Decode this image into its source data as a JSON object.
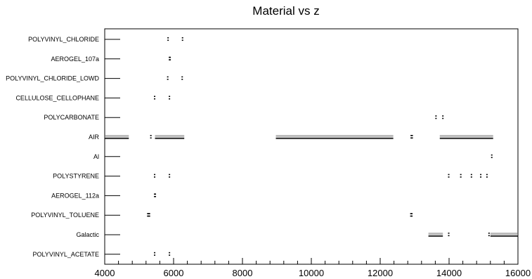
{
  "chart_data": {
    "type": "scatter",
    "title": "Material vs z",
    "xlabel": "",
    "ylabel": "",
    "xlim": [
      4000,
      16000
    ],
    "x_ticks": [
      "4000",
      "6000",
      "8000",
      "10000",
      "12000",
      "14000",
      "16000"
    ],
    "categories": [
      "POLYVINYL_CHLORIDE",
      "AEROGEL_107a",
      "POLYVINYL_CHLORIDE_LOWD",
      "CELLULOSE_CELLOPHANE",
      "POLYCARBONATE",
      "AIR",
      "Al",
      "POLYSTYRENE",
      "AEROGEL_112a",
      "POLYVINYL_TOLUENE",
      "Galactic",
      "POLYVINYL_ACETATE"
    ],
    "grid": false,
    "legend": "none",
    "color": "#000000",
    "points": [
      {
        "category": "POLYVINYL_CHLORIDE",
        "x": [
          5840,
          6260
        ]
      },
      {
        "category": "AEROGEL_107a",
        "x": [
          5880,
          5900
        ]
      },
      {
        "category": "POLYVINYL_CHLORIDE_LOWD",
        "x": [
          5830,
          6250
        ]
      },
      {
        "category": "CELLULOSE_CELLOPHANE",
        "x": [
          5450,
          5880
        ]
      },
      {
        "category": "POLYCARBONATE",
        "x": [
          13620,
          13820
        ]
      },
      {
        "category": "AIR",
        "x": [
          5340,
          12900,
          12930
        ]
      },
      {
        "category": "Al",
        "x": [
          15240
        ]
      },
      {
        "category": "POLYSTYRENE",
        "x": [
          5450,
          5880,
          13990,
          14340,
          14650,
          14920,
          15100
        ]
      },
      {
        "category": "AEROGEL_112a",
        "x": [
          5450,
          5470
        ]
      },
      {
        "category": "POLYVINYL_TOLUENE",
        "x": [
          5250,
          5280,
          5300,
          12890,
          12920
        ]
      },
      {
        "category": "Galactic",
        "x": [
          13990,
          15160
        ]
      },
      {
        "category": "POLYVINYL_ACETATE",
        "x": [
          5450,
          5880
        ]
      }
    ],
    "segments": [
      {
        "category": "AIR",
        "x": [
          4000,
          4700
        ]
      },
      {
        "category": "AIR",
        "x": [
          5460,
          6310
        ]
      },
      {
        "category": "AIR",
        "x": [
          8970,
          12380
        ]
      },
      {
        "category": "AIR",
        "x": [
          13730,
          15280
        ]
      },
      {
        "category": "Galactic",
        "x": [
          13400,
          13820
        ]
      },
      {
        "category": "Galactic",
        "x": [
          15200,
          16000
        ]
      }
    ]
  }
}
